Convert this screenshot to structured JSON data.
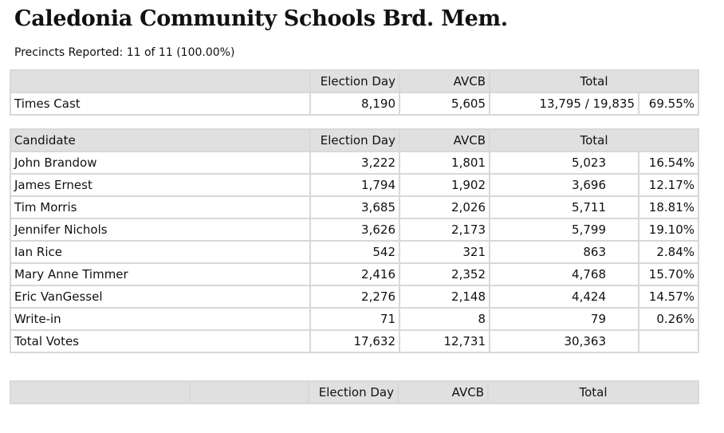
{
  "title": "Caledonia Community Schools Brd. Mem.",
  "precincts": "Precincts Reported: 11 of 11 (100.00%)",
  "headers": {
    "candidate": "Candidate",
    "election_day": "Election Day",
    "avcb": "AVCB",
    "total": "Total"
  },
  "times_cast": {
    "label": "Times Cast",
    "election_day": "8,190",
    "avcb": "5,605",
    "total": "13,795 / 19,835",
    "pct": "69.55%"
  },
  "candidates": [
    {
      "name": "John Brandow",
      "election_day": "3,222",
      "avcb": "1,801",
      "total": "5,023",
      "pct": "16.54%"
    },
    {
      "name": "James Ernest",
      "election_day": "1,794",
      "avcb": "1,902",
      "total": "3,696",
      "pct": "12.17%"
    },
    {
      "name": "Tim Morris",
      "election_day": "3,685",
      "avcb": "2,026",
      "total": "5,711",
      "pct": "18.81%"
    },
    {
      "name": "Jennifer Nichols",
      "election_day": "3,626",
      "avcb": "2,173",
      "total": "5,799",
      "pct": "19.10%"
    },
    {
      "name": "Ian Rice",
      "election_day": "542",
      "avcb": "321",
      "total": "863",
      "pct": "2.84%"
    },
    {
      "name": "Mary Anne Timmer",
      "election_day": "2,416",
      "avcb": "2,352",
      "total": "4,768",
      "pct": "15.70%"
    },
    {
      "name": "Eric VanGessel",
      "election_day": "2,276",
      "avcb": "2,148",
      "total": "4,424",
      "pct": "14.57%"
    },
    {
      "name": "Write-in",
      "election_day": "71",
      "avcb": "8",
      "total": "79",
      "pct": "0.26%"
    }
  ],
  "total_votes": {
    "label": "Total Votes",
    "election_day": "17,632",
    "avcb": "12,731",
    "total": "30,363"
  }
}
